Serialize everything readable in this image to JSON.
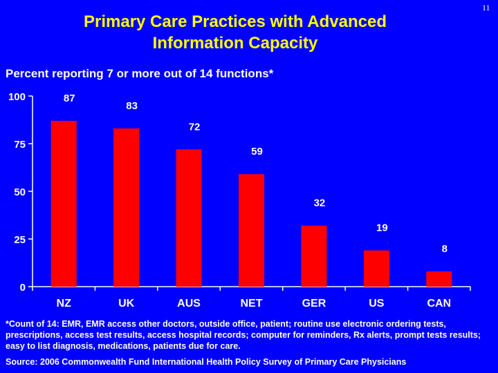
{
  "page_number": "11",
  "title_line1": "Primary Care Practices with Advanced",
  "title_line2": "Information Capacity",
  "subtitle": "Percent reporting 7 or more out of 14 functions*",
  "footnote": "*Count of 14: EMR, EMR access other doctors, outside office, patient; routine use electronic ordering tests, prescriptions, access test results, access hospital records; computer for  reminders, Rx alerts, prompt tests results; easy to list diagnosis, medications, patients due for care.",
  "source": "Source: 2006 Commonwealth Fund International Health Policy Survey of Primary Care Physicians",
  "colors": {
    "background": "#0000FF",
    "title": "#FFFF00",
    "bar": "#FF0000",
    "text": "#FFFFFF"
  },
  "chart_data": {
    "type": "bar",
    "title": "Percent reporting 7 or more out of 14 functions*",
    "categories": [
      "NZ",
      "UK",
      "AUS",
      "NET",
      "GER",
      "US",
      "CAN"
    ],
    "values": [
      87,
      83,
      72,
      59,
      32,
      19,
      8
    ],
    "yticks": [
      0,
      25,
      50,
      75,
      100
    ],
    "ylim": [
      0,
      100
    ],
    "xlabel": "",
    "ylabel": "",
    "grid": false,
    "legend": "none"
  }
}
